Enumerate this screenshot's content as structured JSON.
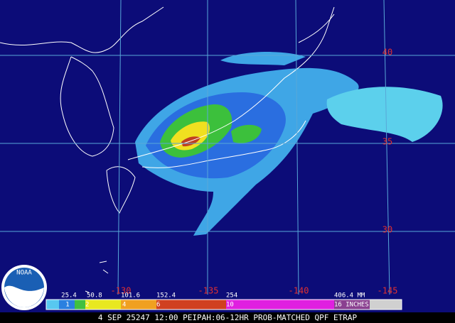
{
  "map": {
    "latitude_labels": [
      "40",
      "35",
      "30"
    ],
    "longitude_labels": [
      "-130",
      "-135",
      "-140",
      "-145"
    ]
  },
  "legend": {
    "mm_labels": [
      "25.4",
      "50.8",
      "101.6",
      "152.4",
      "254",
      "406.4 MM"
    ],
    "inch_labels": [
      "1",
      "2",
      "4",
      "6",
      "10",
      "16 INCHES"
    ]
  },
  "logo": {
    "text": "NOAA"
  },
  "footer": {
    "caption": "4 SEP 25247 12:00 PEIPAH:06-12HR PROB-MATCHED QPF ETRAP"
  }
}
